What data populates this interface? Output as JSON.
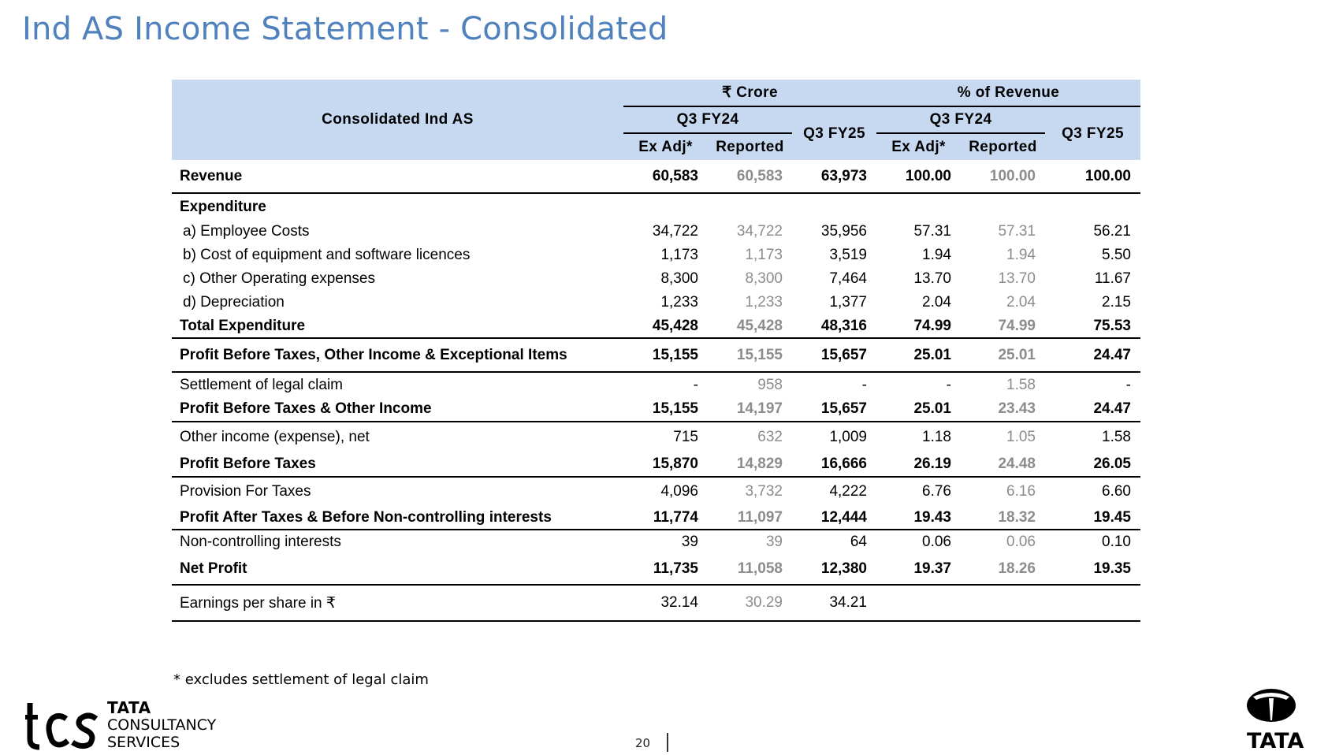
{
  "title": "Ind AS Income Statement - Consolidated",
  "table": {
    "corner_label": "Consolidated Ind AS",
    "group_crore": "₹ Crore",
    "group_pct": "% of Revenue",
    "period_q3fy24": "Q3 FY24",
    "period_q3fy25": "Q3 FY25",
    "sub_exadj": "Ex Adj*",
    "sub_reported": "Reported",
    "rows": [
      {
        "label": "Revenue",
        "v": [
          "60,583",
          "60,583",
          "63,973",
          "100.00",
          "100.00",
          "100.00"
        ]
      },
      {
        "label": "Expenditure",
        "v": [
          "",
          "",
          "",
          "",
          "",
          ""
        ]
      },
      {
        "label": "a) Employee Costs",
        "v": [
          "34,722",
          "34,722",
          "35,956",
          "57.31",
          "57.31",
          "56.21"
        ]
      },
      {
        "label": "b) Cost of equipment and software licences",
        "v": [
          "1,173",
          "1,173",
          "3,519",
          "1.94",
          "1.94",
          "5.50"
        ]
      },
      {
        "label": "c) Other Operating expenses",
        "v": [
          "8,300",
          "8,300",
          "7,464",
          "13.70",
          "13.70",
          "11.67"
        ]
      },
      {
        "label": "d) Depreciation",
        "v": [
          "1,233",
          "1,233",
          "1,377",
          "2.04",
          "2.04",
          "2.15"
        ]
      },
      {
        "label": "Total Expenditure",
        "v": [
          "45,428",
          "45,428",
          "48,316",
          "74.99",
          "74.99",
          "75.53"
        ]
      },
      {
        "label": "Profit Before Taxes, Other Income & Exceptional Items",
        "v": [
          "15,155",
          "15,155",
          "15,657",
          "25.01",
          "25.01",
          "24.47"
        ]
      },
      {
        "label": "Settlement of legal claim",
        "v": [
          "-",
          "958",
          "-",
          "-",
          "1.58",
          "-"
        ]
      },
      {
        "label": "Profit Before Taxes & Other Income",
        "v": [
          "15,155",
          "14,197",
          "15,657",
          "25.01",
          "23.43",
          "24.47"
        ]
      },
      {
        "label": "Other income (expense), net",
        "v": [
          "715",
          "632",
          "1,009",
          "1.18",
          "1.05",
          "1.58"
        ]
      },
      {
        "label": "Profit Before Taxes",
        "v": [
          "15,870",
          "14,829",
          "16,666",
          "26.19",
          "24.48",
          "26.05"
        ]
      },
      {
        "label": "Provision For Taxes",
        "v": [
          "4,096",
          "3,732",
          "4,222",
          "6.76",
          "6.16",
          "6.60"
        ]
      },
      {
        "label": "Profit After Taxes & Before Non-controlling interests",
        "v": [
          "11,774",
          "11,097",
          "12,444",
          "19.43",
          "18.32",
          "19.45"
        ]
      },
      {
        "label": "Non-controlling interests",
        "v": [
          "39",
          "39",
          "64",
          "0.06",
          "0.06",
          "0.10"
        ]
      },
      {
        "label": "Net Profit",
        "v": [
          "11,735",
          "11,058",
          "12,380",
          "19.37",
          "18.26",
          "19.35"
        ]
      },
      {
        "label": "Earnings per share in ₹",
        "v": [
          "32.14",
          "30.29",
          "34.21",
          "",
          "",
          ""
        ]
      }
    ]
  },
  "footnote": "* excludes settlement of legal claim",
  "page_number": "20",
  "brand": {
    "tcs_line1": "TATA",
    "tcs_line2": "CONSULTANCY",
    "tcs_line3": "SERVICES",
    "tata_word": "TATA",
    "header_fill": "#c6d9f1",
    "title_color": "#4f81bd"
  }
}
